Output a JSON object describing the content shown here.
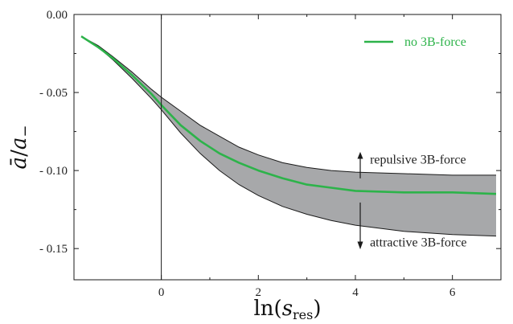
{
  "chart_data": {
    "type": "line",
    "xlabel": "ln(s_res)",
    "xlabel_parts": {
      "fn": "ln(",
      "var": "s",
      "sub": "res",
      "close": ")"
    },
    "ylabel": "ā/a₋",
    "ylabel_parts": {
      "num": "ā",
      "den": "a",
      "den_sub": "−"
    },
    "xlim": [
      -1.8,
      7.0
    ],
    "ylim": [
      -0.17,
      0.0
    ],
    "xticks": [
      0,
      2,
      4,
      6
    ],
    "xtick_labels": [
      "0",
      "2",
      "4",
      "6"
    ],
    "yticks": [
      0.0,
      -0.05,
      -0.1,
      -0.15
    ],
    "ytick_labels": [
      "0.00",
      "- 0.05",
      "- 0.10",
      "- 0.15"
    ],
    "vertical_line_x": 0,
    "grid": false,
    "legend_position": "top-right",
    "series": [
      {
        "name": "no 3B-force",
        "color": "#2db34a",
        "x": [
          -1.65,
          -1.3,
          -1.0,
          -0.6,
          -0.2,
          0,
          0.4,
          0.8,
          1.2,
          1.6,
          2.0,
          2.5,
          3.0,
          3.5,
          4.0,
          5.0,
          6.0,
          6.9
        ],
        "y": [
          -0.014,
          -0.021,
          -0.028,
          -0.039,
          -0.051,
          -0.058,
          -0.071,
          -0.081,
          -0.089,
          -0.095,
          -0.1,
          -0.105,
          -0.109,
          -0.111,
          -0.113,
          -0.114,
          -0.114,
          -0.115
        ]
      }
    ],
    "band": {
      "fill": "#a7a8aa",
      "upper": {
        "label": "repulsive 3B-force",
        "x": [
          -1.65,
          -1.3,
          -1.0,
          -0.6,
          -0.2,
          0,
          0.4,
          0.8,
          1.2,
          1.6,
          2.0,
          2.5,
          3.0,
          3.5,
          4.0,
          5.0,
          6.0,
          6.9
        ],
        "y": [
          -0.014,
          -0.02,
          -0.027,
          -0.037,
          -0.048,
          -0.053,
          -0.062,
          -0.071,
          -0.078,
          -0.085,
          -0.09,
          -0.095,
          -0.098,
          -0.1,
          -0.101,
          -0.102,
          -0.103,
          -0.103
        ]
      },
      "lower": {
        "label": "attractive 3B-force",
        "x": [
          -1.65,
          -1.3,
          -1.0,
          -0.6,
          -0.2,
          0,
          0.4,
          0.8,
          1.2,
          1.6,
          2.0,
          2.5,
          3.0,
          3.5,
          4.0,
          5.0,
          6.0,
          6.9
        ],
        "y": [
          -0.014,
          -0.021,
          -0.029,
          -0.041,
          -0.054,
          -0.061,
          -0.076,
          -0.089,
          -0.1,
          -0.109,
          -0.116,
          -0.123,
          -0.128,
          -0.132,
          -0.135,
          -0.139,
          -0.141,
          -0.142
        ]
      }
    },
    "annotations": [
      "repulsive 3B-force",
      "attractive 3B-force"
    ],
    "legend_label": "no 3B-force"
  }
}
